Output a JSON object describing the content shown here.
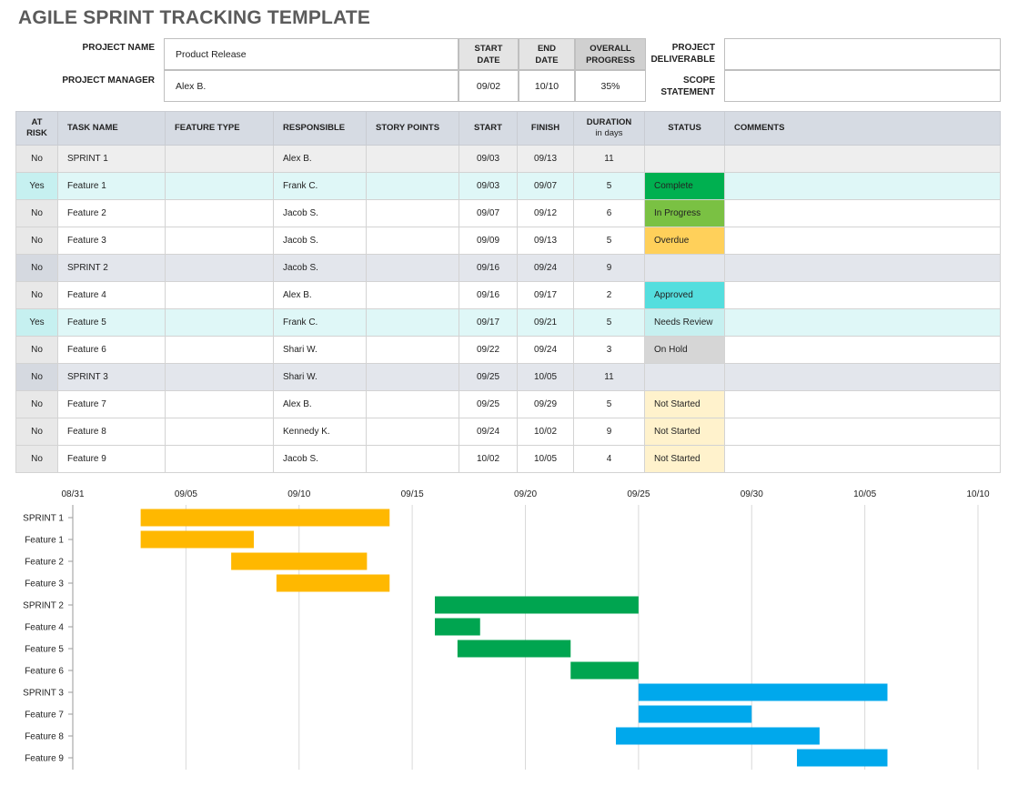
{
  "title": "AGILE SPRINT TRACKING TEMPLATE",
  "project": {
    "name_label": "PROJECT NAME",
    "name_value": "Product Release",
    "manager_label": "PROJECT MANAGER",
    "manager_value": "Alex B.",
    "start_label": "START DATE",
    "start_value": "09/02",
    "end_label": "END DATE",
    "end_value": "10/10",
    "progress_label": "OVERALL PROGRESS",
    "progress_value": "35%",
    "deliverable_label": "PROJECT DELIVERABLE",
    "deliverable_value": "",
    "scope_label": "SCOPE STATEMENT",
    "scope_value": ""
  },
  "table": {
    "headers": {
      "at_risk": "AT RISK",
      "task_name": "TASK NAME",
      "feature_type": "FEATURE TYPE",
      "responsible": "RESPONSIBLE",
      "story_points": "STORY POINTS",
      "start": "START",
      "finish": "FINISH",
      "duration": "DURATION",
      "duration_sub": "in days",
      "status": "STATUS",
      "comments": "COMMENTS"
    },
    "rows": [
      {
        "at_risk": "No",
        "task": "SPRINT 1",
        "feature": "",
        "responsible": "Alex B.",
        "points": "",
        "start": "09/03",
        "finish": "09/13",
        "duration": "11",
        "status": "",
        "comments": "",
        "kind": "sprint1"
      },
      {
        "at_risk": "Yes",
        "task": "Feature 1",
        "feature": "",
        "responsible": "Frank C.",
        "points": "",
        "start": "09/03",
        "finish": "09/07",
        "duration": "5",
        "status": "Complete",
        "comments": "",
        "kind": "atrisk"
      },
      {
        "at_risk": "No",
        "task": "Feature 2",
        "feature": "",
        "responsible": "Jacob S.",
        "points": "",
        "start": "09/07",
        "finish": "09/12",
        "duration": "6",
        "status": "In Progress",
        "comments": "",
        "kind": "normal"
      },
      {
        "at_risk": "No",
        "task": "Feature 3",
        "feature": "",
        "responsible": "Jacob S.",
        "points": "",
        "start": "09/09",
        "finish": "09/13",
        "duration": "5",
        "status": "Overdue",
        "comments": "",
        "kind": "normal"
      },
      {
        "at_risk": "No",
        "task": "SPRINT 2",
        "feature": "",
        "responsible": "Jacob S.",
        "points": "",
        "start": "09/16",
        "finish": "09/24",
        "duration": "9",
        "status": "",
        "comments": "",
        "kind": "sprint"
      },
      {
        "at_risk": "No",
        "task": "Feature 4",
        "feature": "",
        "responsible": "Alex B.",
        "points": "",
        "start": "09/16",
        "finish": "09/17",
        "duration": "2",
        "status": "Approved",
        "comments": "",
        "kind": "normal"
      },
      {
        "at_risk": "Yes",
        "task": "Feature 5",
        "feature": "",
        "responsible": "Frank C.",
        "points": "",
        "start": "09/17",
        "finish": "09/21",
        "duration": "5",
        "status": "Needs Review",
        "comments": "",
        "kind": "atrisk"
      },
      {
        "at_risk": "No",
        "task": "Feature 6",
        "feature": "",
        "responsible": "Shari W.",
        "points": "",
        "start": "09/22",
        "finish": "09/24",
        "duration": "3",
        "status": "On Hold",
        "comments": "",
        "kind": "normal"
      },
      {
        "at_risk": "No",
        "task": "SPRINT 3",
        "feature": "",
        "responsible": "Shari W.",
        "points": "",
        "start": "09/25",
        "finish": "10/05",
        "duration": "11",
        "status": "",
        "comments": "",
        "kind": "sprint"
      },
      {
        "at_risk": "No",
        "task": "Feature 7",
        "feature": "",
        "responsible": "Alex B.",
        "points": "",
        "start": "09/25",
        "finish": "09/29",
        "duration": "5",
        "status": "Not Started",
        "comments": "",
        "kind": "normal"
      },
      {
        "at_risk": "No",
        "task": "Feature 8",
        "feature": "",
        "responsible": "Kennedy K.",
        "points": "",
        "start": "09/24",
        "finish": "10/02",
        "duration": "9",
        "status": "Not Started",
        "comments": "",
        "kind": "normal"
      },
      {
        "at_risk": "No",
        "task": "Feature 9",
        "feature": "",
        "responsible": "Jacob S.",
        "points": "",
        "start": "10/02",
        "finish": "10/05",
        "duration": "4",
        "status": "Not Started",
        "comments": "",
        "kind": "normal"
      }
    ]
  },
  "status_colors": {
    "Complete": "#00b050",
    "In Progress": "#7ac143",
    "Overdue": "#ffd05a",
    "Approved": "#54dede",
    "Needs Review": "#c6f0f0",
    "On Hold": "#d6d6d6",
    "Not Started": "#fff2cc"
  },
  "chart_data": {
    "type": "bar",
    "orientation": "horizontal-gantt",
    "categories": [
      "SPRINT 1",
      "Feature 1",
      "Feature 2",
      "Feature 3",
      "SPRINT 2",
      "Feature 4",
      "Feature 5",
      "Feature 6",
      "SPRINT 3",
      "Feature 7",
      "Feature 8",
      "Feature 9"
    ],
    "start": [
      "09/03",
      "09/03",
      "09/07",
      "09/09",
      "09/16",
      "09/16",
      "09/17",
      "09/22",
      "09/25",
      "09/25",
      "09/24",
      "10/02"
    ],
    "end": [
      "09/14",
      "09/08",
      "09/13",
      "09/14",
      "09/25",
      "09/18",
      "09/22",
      "09/25",
      "10/06",
      "09/30",
      "10/03",
      "10/06"
    ],
    "group_colors": [
      "#ffb800",
      "#ffb800",
      "#ffb800",
      "#ffb800",
      "#00a550",
      "#00a550",
      "#00a550",
      "#00a550",
      "#00a8ec",
      "#00a8ec",
      "#00a8ec",
      "#00a8ec"
    ],
    "x_ticks": [
      "08/31",
      "09/05",
      "09/10",
      "09/15",
      "09/20",
      "09/25",
      "09/30",
      "10/05",
      "10/10"
    ],
    "xlim": [
      "08/31",
      "10/10"
    ],
    "grid": true,
    "legend": "none"
  }
}
